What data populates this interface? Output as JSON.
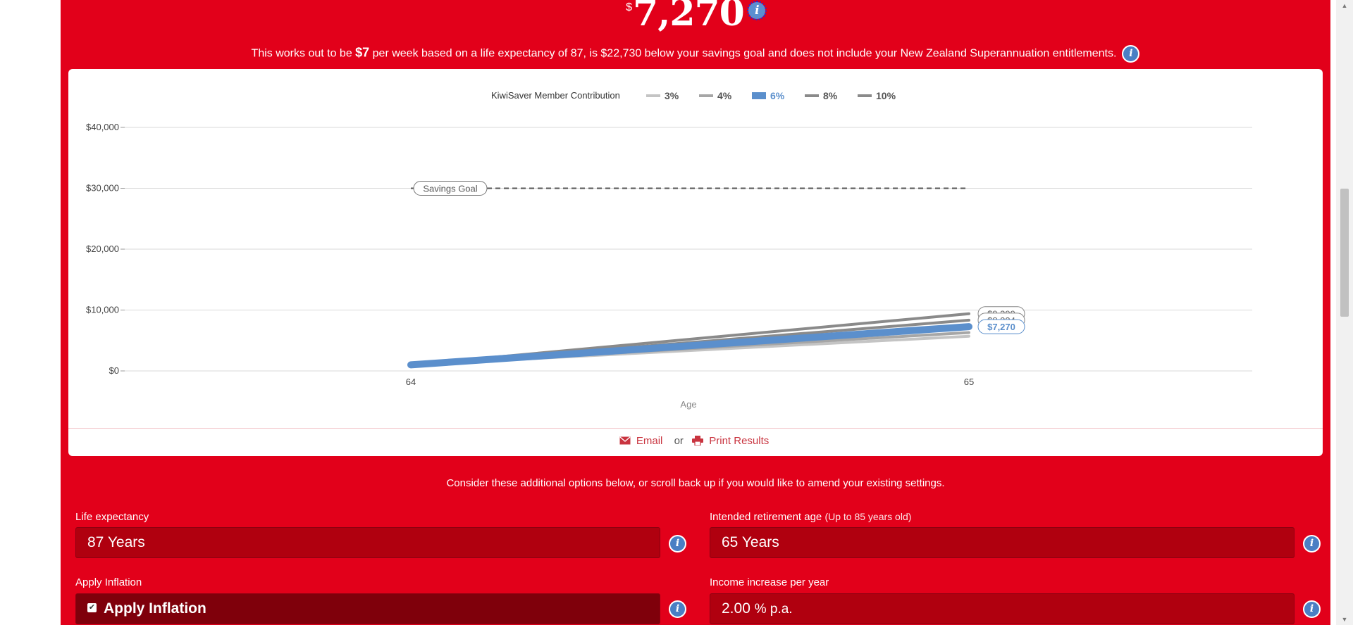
{
  "result": {
    "currency": "$",
    "amount": "7,270"
  },
  "summary": {
    "part1": "This works out to be ",
    "weekly": "$7",
    "part2": " per week based on a life expectancy of 87, is $22,730 below your savings goal and does not include your New Zealand Superannuation entitlements."
  },
  "chart_data": {
    "type": "line",
    "legend_title": "KiwiSaver Member Contribution",
    "legend": [
      "3%",
      "4%",
      "6%",
      "8%",
      "10%"
    ],
    "highlighted_series": "6%",
    "x": [
      64,
      65
    ],
    "x_tick_labels": [
      "64",
      "65"
    ],
    "xlabel": "Age",
    "ylim": [
      0,
      40000
    ],
    "y_tick_labels": [
      "$0",
      "$10,000",
      "$20,000",
      "$30,000",
      "$40,000"
    ],
    "grid": true,
    "series": [
      {
        "name": "3%",
        "values": [
          1000,
          5700
        ]
      },
      {
        "name": "4%",
        "values": [
          1000,
          6300
        ]
      },
      {
        "name": "6%",
        "values": [
          1000,
          7270
        ]
      },
      {
        "name": "8%",
        "values": [
          1000,
          8334
        ]
      },
      {
        "name": "10%",
        "values": [
          1000,
          9399
        ]
      }
    ],
    "savings_goal": {
      "label": "Savings Goal",
      "value": 30000
    },
    "end_labels": [
      {
        "text": "$9,399",
        "value": 9399
      },
      {
        "text": "$8,334",
        "value": 8334
      },
      {
        "text": "$7,270",
        "value": 7270
      }
    ],
    "colors": {
      "gray_light": "#c4c4c4",
      "gray": "#8a8a8a",
      "gray_dark": "#7a7a7a",
      "highlight": "#5b8fcc"
    }
  },
  "actions": {
    "email": "Email",
    "or": "or",
    "print": "Print Results"
  },
  "consider_text": "Consider these additional options below, or scroll back up if you would like to amend your existing settings.",
  "fields": {
    "life_expectancy": {
      "label": "Life expectancy",
      "value": "87 Years"
    },
    "retirement_age": {
      "label": "Intended retirement age",
      "hint": "(Up to 85 years old)",
      "value": "65 Years"
    },
    "apply_inflation": {
      "label": "Apply Inflation",
      "value": "Apply Inflation"
    },
    "income_increase": {
      "label": "Income increase per year",
      "value": "2.00",
      "unit": "% p.a."
    }
  },
  "info_glyph": "i"
}
